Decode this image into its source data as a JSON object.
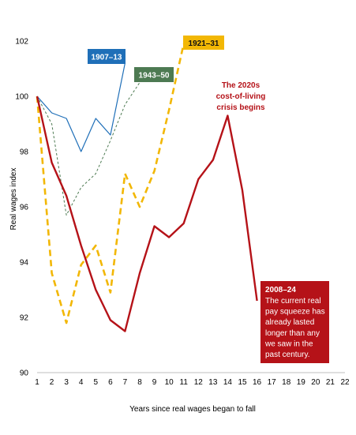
{
  "chart_data": {
    "type": "line",
    "xlabel": "Years since real wages began to fall",
    "ylabel": "Real wages index",
    "xlim": [
      1,
      22
    ],
    "ylim": [
      90,
      102
    ],
    "x_ticks": [
      1,
      2,
      3,
      4,
      5,
      6,
      7,
      8,
      9,
      10,
      11,
      12,
      13,
      14,
      15,
      16,
      17,
      18,
      19,
      20,
      21,
      22
    ],
    "y_ticks": [
      90,
      92,
      94,
      96,
      98,
      100,
      102
    ],
    "grid": false,
    "series": [
      {
        "name": "1907–13",
        "color": "#1f6fb8",
        "style": "solid-thin",
        "x": [
          1,
          2,
          3,
          4,
          5,
          6,
          7
        ],
        "y": [
          100.0,
          99.4,
          99.2,
          98.0,
          99.2,
          98.6,
          101.2
        ]
      },
      {
        "name": "1943–50",
        "color": "#4d7a52",
        "style": "dashed-thin",
        "x": [
          1,
          2,
          3,
          4,
          5,
          6,
          7,
          8
        ],
        "y": [
          100.0,
          99.0,
          95.7,
          96.7,
          97.2,
          98.4,
          99.7,
          100.5
        ]
      },
      {
        "name": "1921–31",
        "color": "#f2b705",
        "style": "dashed-thick",
        "x": [
          1,
          2,
          3,
          4,
          5,
          6,
          7,
          8,
          9,
          10,
          11
        ],
        "y": [
          100.0,
          93.6,
          91.8,
          93.9,
          94.6,
          92.9,
          97.2,
          96.0,
          97.3,
          99.5,
          101.9
        ]
      },
      {
        "name": "2008–24",
        "color": "#b51218",
        "style": "solid-thick",
        "x": [
          1,
          2,
          3,
          4,
          5,
          6,
          7,
          8,
          9,
          10,
          11,
          12,
          13,
          14,
          15,
          16
        ],
        "y": [
          100.0,
          97.6,
          96.4,
          94.6,
          93.0,
          91.9,
          91.5,
          93.6,
          95.3,
          94.9,
          95.4,
          97.0,
          97.7,
          99.3,
          96.6,
          92.6
        ]
      }
    ],
    "labels": {
      "s1907": "1907–13",
      "s1943": "1943–50",
      "s1921": "1921–31",
      "s2008_title": "2008–24",
      "s2008_body": [
        "The current real",
        "pay squeeze has",
        "already lasted",
        "longer than any",
        "we saw in the",
        "past century."
      ],
      "crisis": [
        "The 2020s",
        "cost-of-living",
        "crisis begins"
      ]
    }
  }
}
